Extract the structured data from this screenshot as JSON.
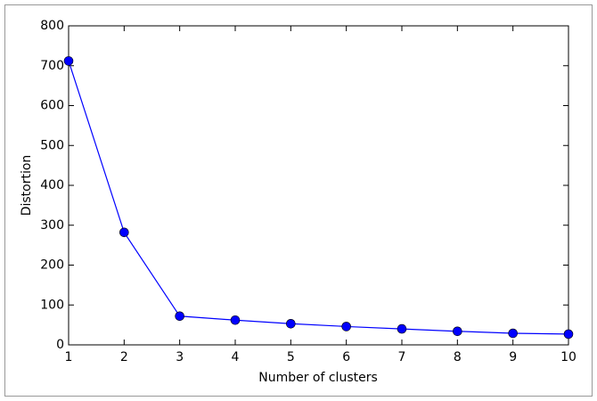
{
  "chart_data": {
    "type": "line",
    "x_label": "Number of clusters",
    "y_label": "Distortion",
    "x": [
      1,
      2,
      3,
      4,
      5,
      6,
      7,
      8,
      9,
      10
    ],
    "values": [
      712,
      282,
      72,
      62,
      53,
      46,
      40,
      34,
      29,
      27
    ],
    "color": "#0000ff",
    "xlim": [
      1,
      10
    ],
    "xticks": [
      1,
      2,
      3,
      4,
      5,
      6,
      7,
      8,
      9,
      10
    ],
    "ylim": [
      0,
      800
    ],
    "yticks": [
      0,
      100,
      200,
      300,
      400,
      500,
      600,
      700,
      800
    ]
  }
}
